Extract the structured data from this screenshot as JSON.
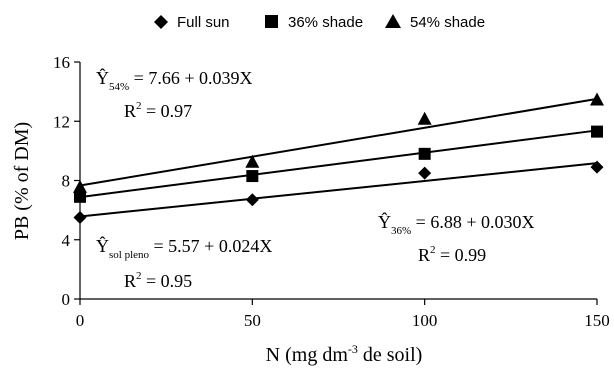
{
  "chart_data": {
    "type": "scatter",
    "xlabel_parts": [
      "N (mg dm",
      "-3",
      " de soil)"
    ],
    "ylabel": "PB (% of DM)",
    "xlim": [
      0,
      150
    ],
    "ylim": [
      0,
      16
    ],
    "xticks": [
      0,
      50,
      100,
      150
    ],
    "yticks": [
      0,
      4,
      8,
      12,
      16
    ],
    "grid": false,
    "legend_position": "top",
    "x": [
      0,
      50,
      100,
      150
    ],
    "series": [
      {
        "name": "Full sun",
        "marker": "diamond",
        "values": [
          5.5,
          6.7,
          8.5,
          8.9
        ],
        "fit": {
          "intercept": 5.57,
          "slope": 0.024
        }
      },
      {
        "name": "36% shade",
        "marker": "square",
        "values": [
          6.9,
          8.3,
          9.8,
          11.3
        ],
        "fit": {
          "intercept": 6.88,
          "slope": 0.03
        }
      },
      {
        "name": "54% shade",
        "marker": "triangle",
        "values": [
          7.5,
          9.2,
          12.1,
          13.4
        ],
        "fit": {
          "intercept": 7.66,
          "slope": 0.039
        }
      }
    ],
    "annotations": [
      {
        "id": "eq54",
        "y_hat": "Ŷ",
        "subscript": "54%",
        "equation": " = 7.66 + 0.039X",
        "r2_label": "R",
        "r2_exp": "2",
        "r2_value": " = 0.97"
      },
      {
        "id": "eq36",
        "y_hat": "Ŷ",
        "subscript": "36%",
        "equation": " = 6.88 + 0.030X",
        "r2_label": "R",
        "r2_exp": "2",
        "r2_value": " = 0.99"
      },
      {
        "id": "eqsol",
        "y_hat": "Ŷ",
        "subscript": "sol pleno",
        "equation": " = 5.57 + 0.024X",
        "r2_label": "R",
        "r2_exp": "2",
        "r2_value": " = 0.95"
      }
    ]
  }
}
